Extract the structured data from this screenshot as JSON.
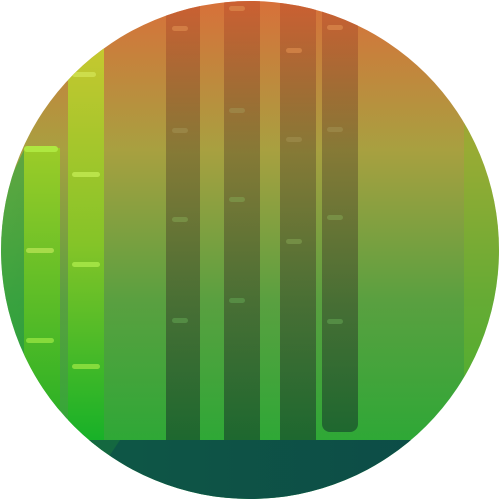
{
  "illustration": {
    "subject": "bamboo-forest",
    "colors": {
      "sky_top": "#d86a36",
      "sky_mid": "#8fa040",
      "sky_bottom": "#1fa83a",
      "ground": "#0e4f47",
      "dark_stalk": "#224a2e",
      "bright_stalk": "#7cd020",
      "node_highlight": "#c8f060"
    }
  }
}
